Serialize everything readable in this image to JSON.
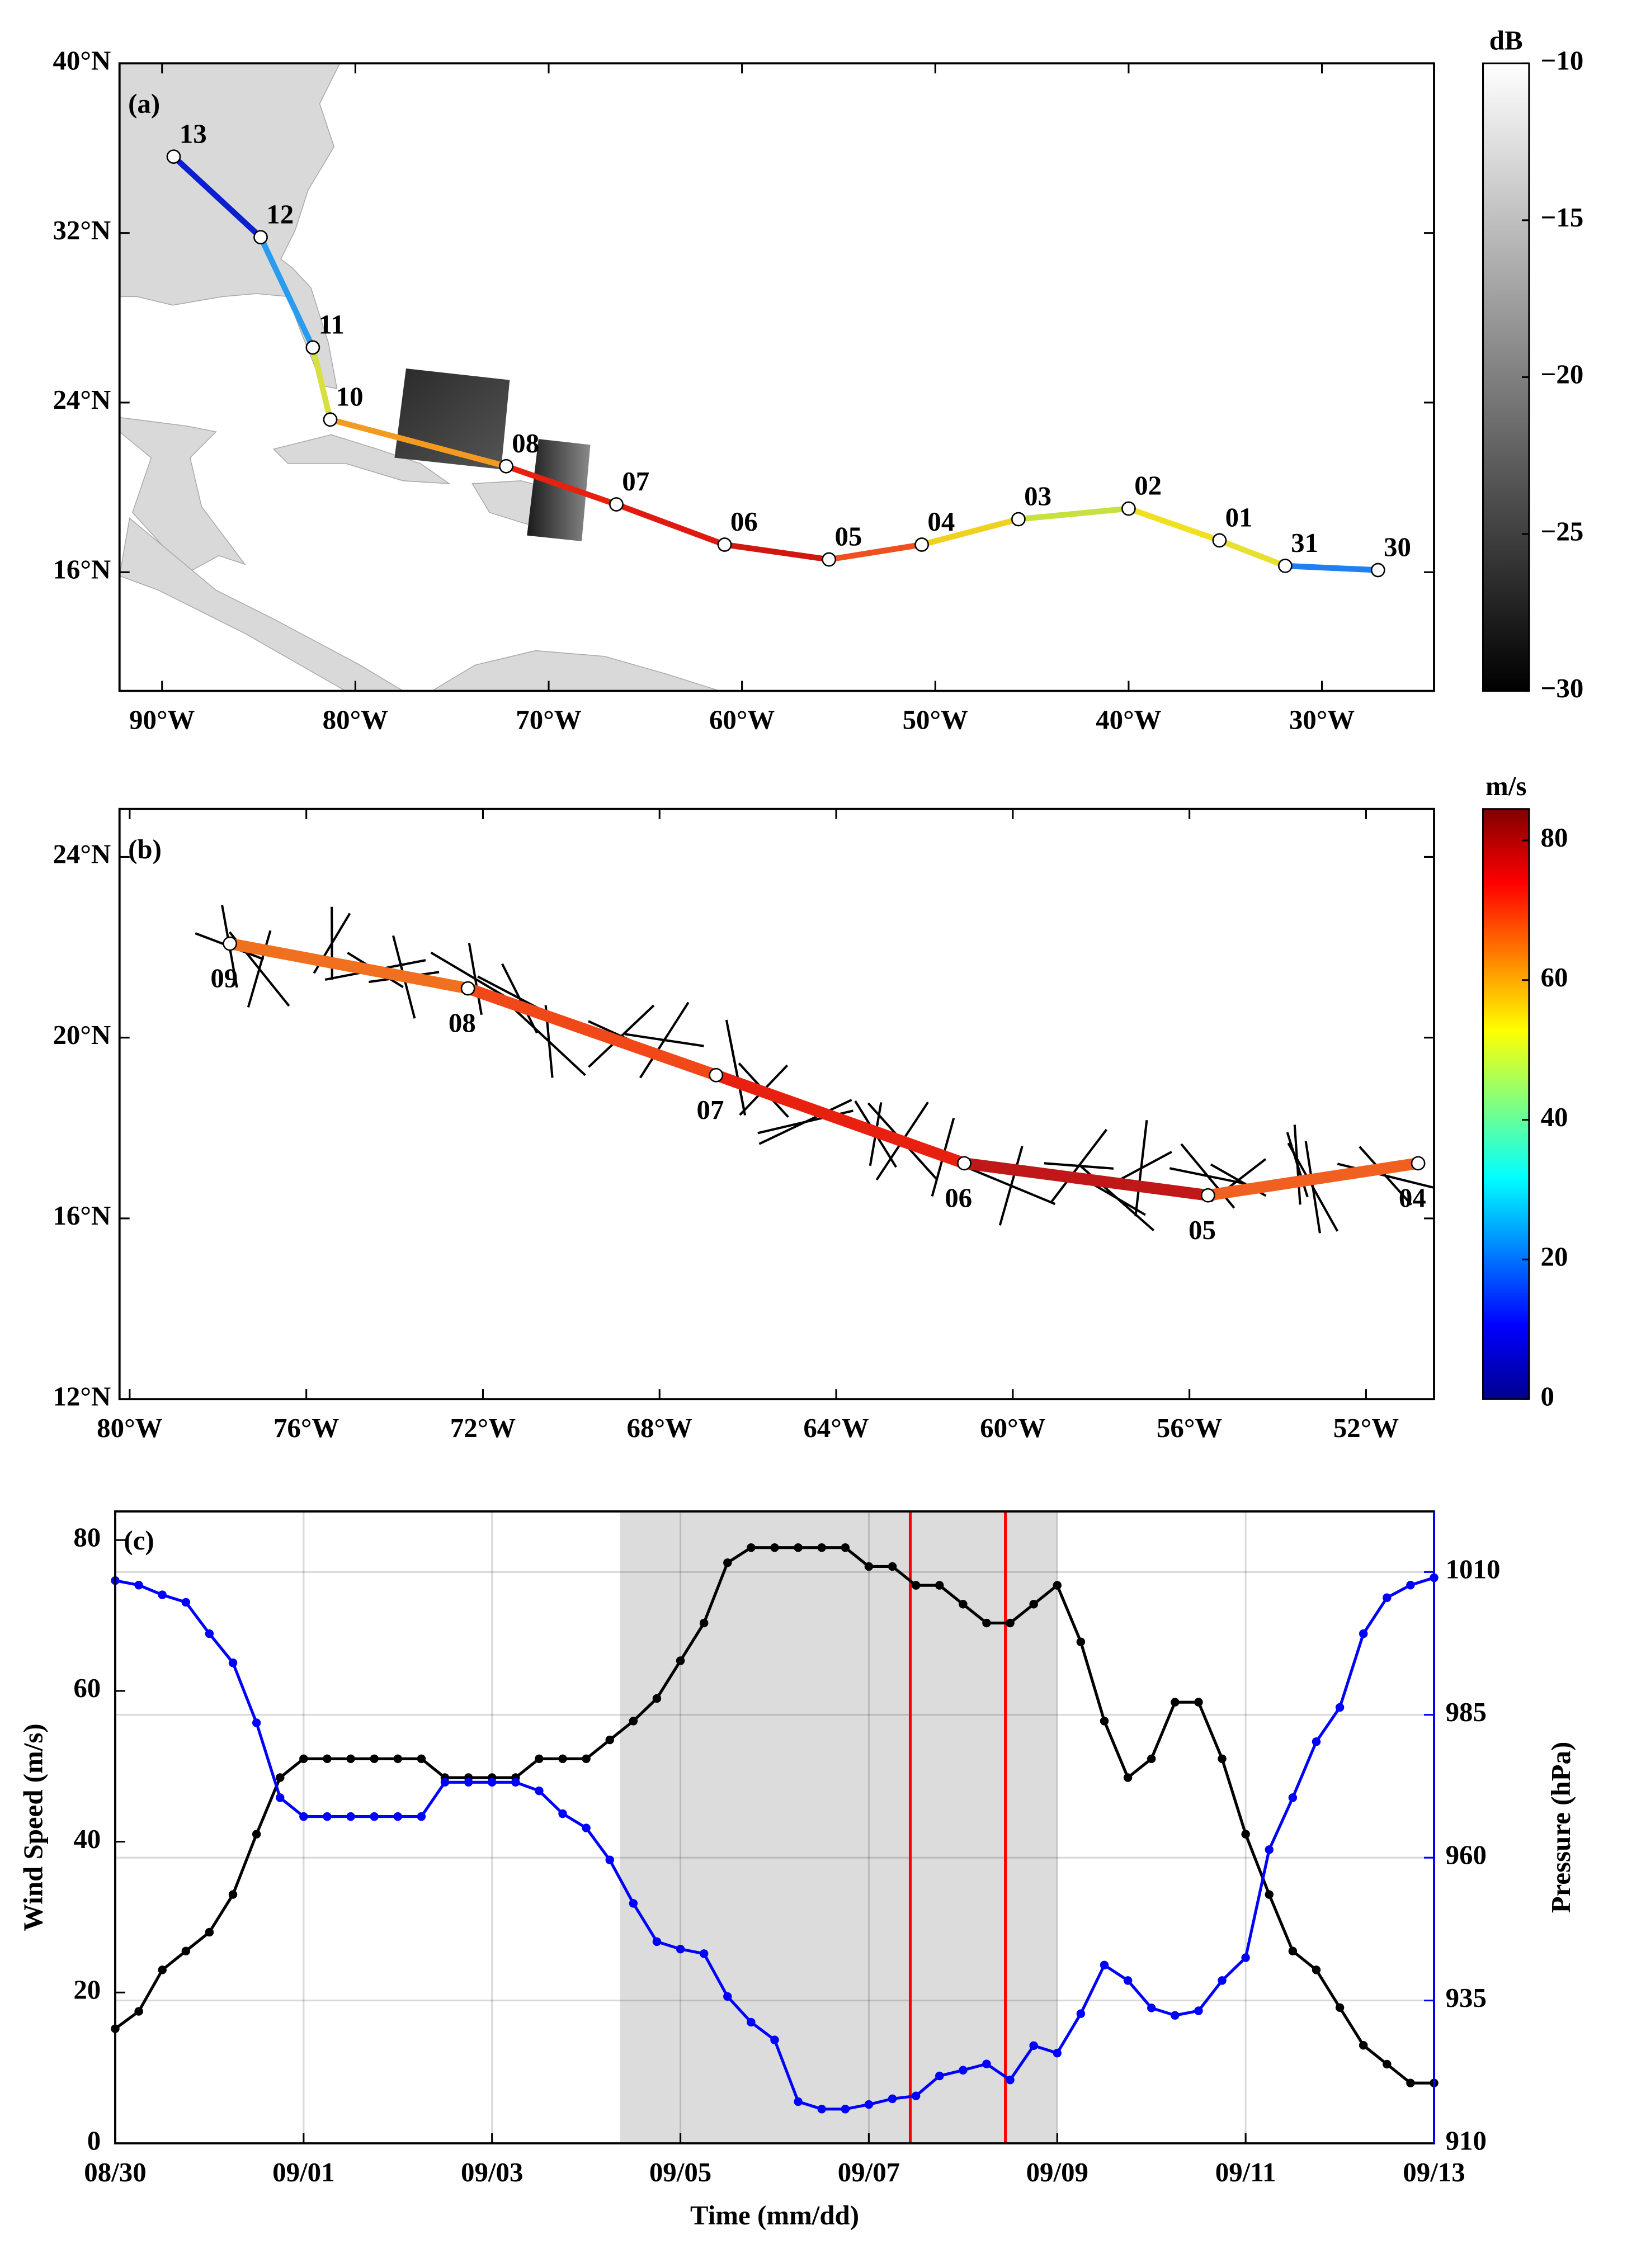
{
  "chart_data": [
    {
      "type": "map_track",
      "panel_label": "(a)",
      "xlim": [
        -92.2,
        -24.2
      ],
      "ylim": [
        10.4,
        40
      ],
      "xticks": [
        {
          "value": -90,
          "label": "90°W"
        },
        {
          "value": -80,
          "label": "80°W"
        },
        {
          "value": -70,
          "label": "70°W"
        },
        {
          "value": -60,
          "label": "60°W"
        },
        {
          "value": -50,
          "label": "50°W"
        },
        {
          "value": -40,
          "label": "40°W"
        },
        {
          "value": -30,
          "label": "30°W"
        }
      ],
      "yticks": [
        {
          "value": 16,
          "label": "16°N"
        },
        {
          "value": 24,
          "label": "24°N"
        },
        {
          "value": 32,
          "label": "32°N"
        },
        {
          "value": 40,
          "label": "40°N"
        }
      ],
      "labels": [
        "13",
        "12",
        "11",
        "10",
        "08",
        "07",
        "06",
        "05",
        "04",
        "03",
        "02",
        "01",
        "31",
        "30"
      ],
      "x": [
        -89.4,
        -84.9,
        -82.2,
        -81.3,
        -72.2,
        -66.5,
        -60.9,
        -55.5,
        -50.7,
        -45.7,
        -40.0,
        -35.3,
        -31.9,
        -27.1
      ],
      "y": [
        35.6,
        31.8,
        26.6,
        23.2,
        21.0,
        19.2,
        17.3,
        16.6,
        17.3,
        18.5,
        19.0,
        17.5,
        16.3,
        16.1
      ],
      "point_colors": [
        "#0a1fd0",
        "#2a9cf0",
        "#d8e040",
        "#f59a20",
        "#e8200e",
        "#e01a10",
        "#d01810",
        "#f05020",
        "#f0d020",
        "#c8e040",
        "#f0e020",
        "#e8e030",
        "#2080f0",
        "#1870e0"
      ],
      "label_position": "above",
      "colorbar": {
        "label": "dB",
        "lim": [
          -30,
          -10
        ],
        "ticks": [
          {
            "value": -10,
            "label": "−10"
          },
          {
            "value": -15,
            "label": "−15"
          },
          {
            "value": -20,
            "label": "−20"
          },
          {
            "value": -25,
            "label": "−25"
          },
          {
            "value": -30,
            "label": "−30"
          }
        ],
        "colors": [
          "#000000",
          "#ffffff"
        ]
      }
    },
    {
      "type": "map_track",
      "panel_label": "(b)",
      "xlim": [
        -80.23,
        -50.46
      ],
      "ylim": [
        12,
        25.06
      ],
      "xticks": [
        {
          "value": -80,
          "label": "80°W"
        },
        {
          "value": -76,
          "label": "76°W"
        },
        {
          "value": -72,
          "label": "72°W"
        },
        {
          "value": -68,
          "label": "68°W"
        },
        {
          "value": -64,
          "label": "64°W"
        },
        {
          "value": -60,
          "label": "60°W"
        },
        {
          "value": -56,
          "label": "56°W"
        },
        {
          "value": -52,
          "label": "52°W"
        }
      ],
      "yticks": [
        {
          "value": 12,
          "label": "12°N"
        },
        {
          "value": 16,
          "label": "16°N"
        },
        {
          "value": 20,
          "label": "20°N"
        },
        {
          "value": 24,
          "label": "24°N"
        }
      ],
      "labels": [
        "09",
        "08",
        "07",
        "06",
        "05",
        "04"
      ],
      "x": [
        -77.73,
        -72.34,
        -66.72,
        -61.1,
        -55.58,
        -50.82
      ],
      "y": [
        22.08,
        21.09,
        19.17,
        17.22,
        16.51,
        17.22
      ],
      "point_colors": [
        "#f07020",
        "#f04818",
        "#e82010",
        "#c01818",
        "#f06020",
        "#f8e040"
      ],
      "label_position": "below",
      "colorbar": {
        "label": "m/s",
        "lim": [
          0,
          84.5
        ],
        "ticks": [
          0,
          20,
          40,
          60,
          80
        ],
        "colors": [
          "#00008f",
          "#0000ff",
          "#0080ff",
          "#00ffff",
          "#80ff80",
          "#ffff00",
          "#ff8000",
          "#ff0000",
          "#800000"
        ]
      }
    },
    {
      "type": "line",
      "panel_label": "(c)",
      "xlabel": "Time (mm/dd)",
      "ylabel": "Wind Speed (m/s)",
      "y2label": "Pressure (hPa)",
      "xlim": [
        0,
        14
      ],
      "ylim": [
        0,
        83.8
      ],
      "y2lim": [
        910,
        1020.6
      ],
      "xticks": [
        {
          "value": 0,
          "label": "08/30"
        },
        {
          "value": 2,
          "label": "09/01"
        },
        {
          "value": 4,
          "label": "09/03"
        },
        {
          "value": 6,
          "label": "09/05"
        },
        {
          "value": 8,
          "label": "09/07"
        },
        {
          "value": 10,
          "label": "09/09"
        },
        {
          "value": 12,
          "label": "09/11"
        },
        {
          "value": 14,
          "label": "09/13"
        }
      ],
      "yticks": [
        0,
        20,
        40,
        60,
        80
      ],
      "y2ticks": [
        910,
        935,
        960,
        985,
        1010
      ],
      "grid": true,
      "x": [
        0,
        0.25,
        0.5,
        0.75,
        1,
        1.25,
        1.5,
        1.75,
        2,
        2.25,
        2.5,
        2.75,
        3,
        3.25,
        3.5,
        3.75,
        4,
        4.25,
        4.5,
        4.75,
        5,
        5.25,
        5.5,
        5.75,
        6,
        6.25,
        6.5,
        6.75,
        7,
        7.25,
        7.5,
        7.75,
        8,
        8.25,
        8.5,
        8.75,
        9,
        9.25,
        9.5,
        9.75,
        10,
        10.25,
        10.5,
        10.75,
        11,
        11.25,
        11.5,
        11.75,
        12,
        12.25,
        12.5,
        12.75,
        13,
        13.25,
        13.5,
        13.75,
        14
      ],
      "series": [
        {
          "color": "#000000",
          "axis": "y",
          "values": [
            15.2,
            17.5,
            23,
            25.5,
            28,
            33,
            41,
            48.5,
            51,
            51,
            51,
            51,
            51,
            51,
            48.5,
            48.5,
            48.5,
            48.5,
            51,
            51,
            51,
            53.5,
            56,
            59,
            64,
            69,
            77,
            79,
            79,
            79,
            79,
            79,
            76.5,
            76.5,
            74,
            74,
            71.5,
            69,
            69,
            71.5,
            74,
            66.5,
            56,
            48.5,
            51,
            58.5,
            58.5,
            51,
            41,
            33,
            25.5,
            23,
            18,
            13,
            10.5,
            8,
            8
          ]
        },
        {
          "color": "#0000ff",
          "axis": "y2",
          "values": [
            1008.5,
            1007.7,
            1006,
            1004.7,
            999.2,
            994.1,
            983.6,
            970.5,
            967.2,
            967.2,
            967.2,
            967.2,
            967.2,
            967.2,
            973.2,
            973.2,
            973.2,
            973.2,
            971.7,
            967.7,
            965.2,
            959.6,
            952,
            945.3,
            944,
            943.2,
            935.7,
            931.2,
            928.1,
            917.3,
            916,
            916,
            916.8,
            917.8,
            918.3,
            921.8,
            922.8,
            923.9,
            921.1,
            927.1,
            925.8,
            932.7,
            941.2,
            938.5,
            933.7,
            932.4,
            933.2,
            938.5,
            942.5,
            961.4,
            970.5,
            980.3,
            986.3,
            999.2,
            1005.5,
            1007.7,
            1009
          ]
        }
      ],
      "shaded": [
        5.36,
        10
      ],
      "shade_color": "#dcdcdc",
      "vlines": [
        8.44,
        9.45
      ],
      "vline_color": "#ff0000"
    }
  ]
}
